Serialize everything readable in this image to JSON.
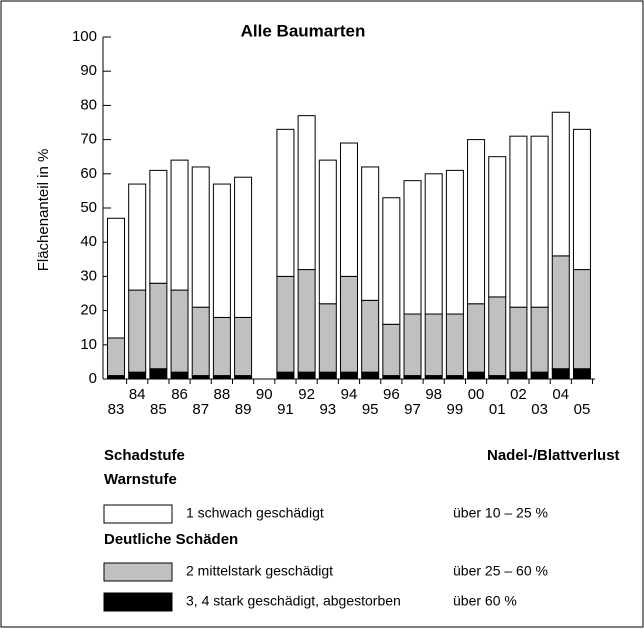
{
  "chart_data": {
    "type": "bar",
    "stacked": true,
    "title": "Alle Baumarten",
    "y_label": "Flächenanteil in %",
    "categories": [
      "83",
      "84",
      "85",
      "86",
      "87",
      "88",
      "89",
      "90",
      "91",
      "92",
      "93",
      "94",
      "95",
      "96",
      "97",
      "98",
      "99",
      "00",
      "01",
      "02",
      "03",
      "04",
      "05"
    ],
    "series": [
      {
        "name": "3, 4 stark geschädigt, abgestorben",
        "color": "#000000",
        "range": "über 60 %",
        "values": [
          1,
          2,
          3,
          2,
          1,
          1,
          1,
          null,
          2,
          2,
          2,
          2,
          2,
          1,
          1,
          1,
          1,
          2,
          1,
          2,
          2,
          3,
          3
        ]
      },
      {
        "name": "2 mittelstark geschädigt",
        "color": "#c0c0c0",
        "range": "über 25 – 60 %",
        "values": [
          11,
          24,
          25,
          24,
          20,
          17,
          17,
          null,
          28,
          30,
          20,
          28,
          21,
          15,
          18,
          18,
          18,
          20,
          23,
          19,
          19,
          33,
          29
        ]
      },
      {
        "name": "1 schwach geschädigt",
        "color": "#ffffff",
        "range": "über 10 – 25 %",
        "values": [
          35,
          31,
          33,
          38,
          41,
          39,
          41,
          null,
          43,
          45,
          42,
          39,
          39,
          37,
          39,
          41,
          42,
          48,
          41,
          50,
          50,
          42,
          41
        ]
      }
    ],
    "ylim": [
      0,
      100
    ],
    "yticks": [
      0,
      10,
      20,
      30,
      40,
      50,
      60,
      70,
      80,
      90,
      100
    ],
    "legend_heading": "Schadstufe",
    "legend_column": "Nadel-/Blattverlust",
    "legend_groups": [
      "Warnstufe",
      "Deutliche Schäden"
    ]
  }
}
